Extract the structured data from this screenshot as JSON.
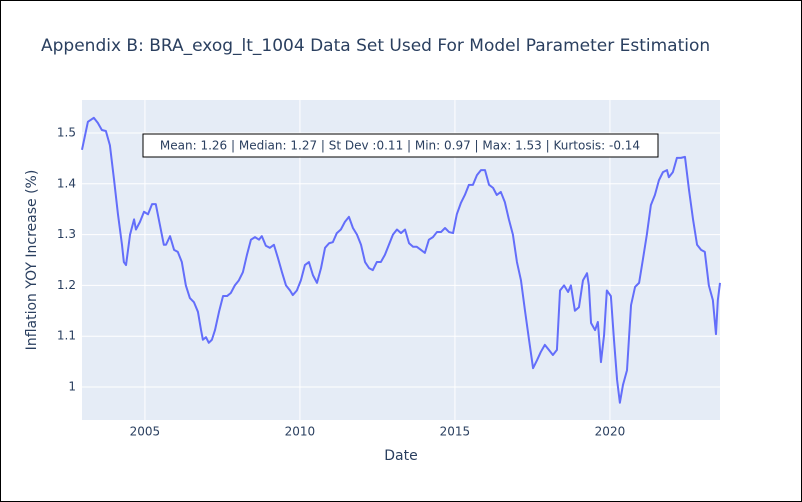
{
  "chart_data": {
    "type": "line",
    "title": "Appendix B: BRA_exog_lt_1004 Data Set Used For Model Parameter Estimation",
    "x_label": "Date",
    "y_label": "Inflation YOY Increase (%)",
    "annotation": "Mean: 1.26 | Median: 1.27 | St Dev :0.11 | Min: 0.97 | Max: 1.53 | Kurtosis: -0.14",
    "x": [
      2002.97,
      2003.16,
      2003.35,
      2003.48,
      2003.61,
      2003.74,
      2003.87,
      2004.0,
      2004.13,
      2004.26,
      2004.32,
      2004.39,
      2004.52,
      2004.65,
      2004.71,
      2004.84,
      2004.97,
      2005.1,
      2005.23,
      2005.35,
      2005.48,
      2005.61,
      2005.68,
      2005.81,
      2005.94,
      2006.06,
      2006.19,
      2006.32,
      2006.45,
      2006.58,
      2006.71,
      2006.81,
      2006.87,
      2006.97,
      2007.06,
      2007.16,
      2007.26,
      2007.39,
      2007.52,
      2007.65,
      2007.77,
      2007.9,
      2008.03,
      2008.16,
      2008.29,
      2008.42,
      2008.55,
      2008.68,
      2008.77,
      2008.9,
      2009.03,
      2009.16,
      2009.29,
      2009.42,
      2009.55,
      2009.68,
      2009.77,
      2009.9,
      2010.03,
      2010.16,
      2010.29,
      2010.42,
      2010.55,
      2010.68,
      2010.81,
      2010.94,
      2011.06,
      2011.19,
      2011.32,
      2011.45,
      2011.58,
      2011.71,
      2011.84,
      2011.97,
      2012.1,
      2012.23,
      2012.35,
      2012.48,
      2012.61,
      2012.74,
      2012.87,
      2013.0,
      2013.13,
      2013.26,
      2013.39,
      2013.52,
      2013.65,
      2013.77,
      2013.9,
      2014.03,
      2014.16,
      2014.29,
      2014.42,
      2014.55,
      2014.68,
      2014.81,
      2014.94,
      2015.06,
      2015.19,
      2015.32,
      2015.45,
      2015.58,
      2015.71,
      2015.84,
      2015.97,
      2016.1,
      2016.23,
      2016.35,
      2016.48,
      2016.61,
      2016.74,
      2016.87,
      2017.0,
      2017.13,
      2017.26,
      2017.39,
      2017.52,
      2017.65,
      2017.77,
      2017.9,
      2018.03,
      2018.16,
      2018.29,
      2018.39,
      2018.52,
      2018.65,
      2018.74,
      2018.87,
      2019.0,
      2019.13,
      2019.26,
      2019.32,
      2019.39,
      2019.52,
      2019.61,
      2019.71,
      2019.81,
      2019.9,
      2020.03,
      2020.13,
      2020.23,
      2020.32,
      2020.42,
      2020.55,
      2020.68,
      2020.81,
      2020.94,
      2021.06,
      2021.19,
      2021.32,
      2021.45,
      2021.58,
      2021.71,
      2021.84,
      2021.9,
      2022.03,
      2022.16,
      2022.29,
      2022.42,
      2022.55,
      2022.68,
      2022.81,
      2022.94,
      2023.06,
      2023.19,
      2023.32,
      2023.42,
      2023.48,
      2023.55
    ],
    "series": [
      {
        "color": "#636efa",
        "values": [
          1.467,
          1.522,
          1.53,
          1.52,
          1.506,
          1.504,
          1.476,
          1.41,
          1.34,
          1.28,
          1.246,
          1.24,
          1.3,
          1.33,
          1.31,
          1.325,
          1.345,
          1.34,
          1.36,
          1.36,
          1.32,
          1.28,
          1.28,
          1.297,
          1.27,
          1.266,
          1.246,
          1.2,
          1.175,
          1.167,
          1.148,
          1.112,
          1.093,
          1.098,
          1.087,
          1.093,
          1.112,
          1.148,
          1.179,
          1.179,
          1.185,
          1.2,
          1.21,
          1.226,
          1.26,
          1.29,
          1.295,
          1.29,
          1.297,
          1.278,
          1.274,
          1.28,
          1.254,
          1.226,
          1.2,
          1.19,
          1.181,
          1.19,
          1.21,
          1.24,
          1.246,
          1.22,
          1.205,
          1.234,
          1.274,
          1.283,
          1.285,
          1.303,
          1.31,
          1.325,
          1.335,
          1.313,
          1.3,
          1.28,
          1.246,
          1.234,
          1.23,
          1.246,
          1.246,
          1.26,
          1.28,
          1.3,
          1.31,
          1.303,
          1.31,
          1.283,
          1.276,
          1.276,
          1.27,
          1.264,
          1.29,
          1.295,
          1.305,
          1.305,
          1.313,
          1.305,
          1.303,
          1.34,
          1.362,
          1.378,
          1.398,
          1.398,
          1.417,
          1.427,
          1.427,
          1.398,
          1.392,
          1.378,
          1.384,
          1.364,
          1.33,
          1.3,
          1.246,
          1.21,
          1.15,
          1.093,
          1.037,
          1.053,
          1.069,
          1.083,
          1.073,
          1.063,
          1.073,
          1.19,
          1.2,
          1.187,
          1.2,
          1.15,
          1.157,
          1.21,
          1.224,
          1.2,
          1.126,
          1.112,
          1.128,
          1.049,
          1.102,
          1.19,
          1.179,
          1.093,
          1.014,
          0.969,
          1.004,
          1.033,
          1.161,
          1.197,
          1.205,
          1.25,
          1.3,
          1.358,
          1.378,
          1.407,
          1.423,
          1.427,
          1.413,
          1.423,
          1.451,
          1.451,
          1.453,
          1.388,
          1.33,
          1.28,
          1.27,
          1.266,
          1.2,
          1.171,
          1.104,
          1.171,
          1.205
        ]
      }
    ],
    "xlim": [
      2002.97,
      2023.55
    ],
    "xticks": [
      2005,
      2010,
      2015,
      2020
    ],
    "ylim": [
      0.935,
      1.565
    ],
    "yticks": [
      1,
      1.1,
      1.2,
      1.3,
      1.4,
      1.5
    ],
    "grid": true
  }
}
